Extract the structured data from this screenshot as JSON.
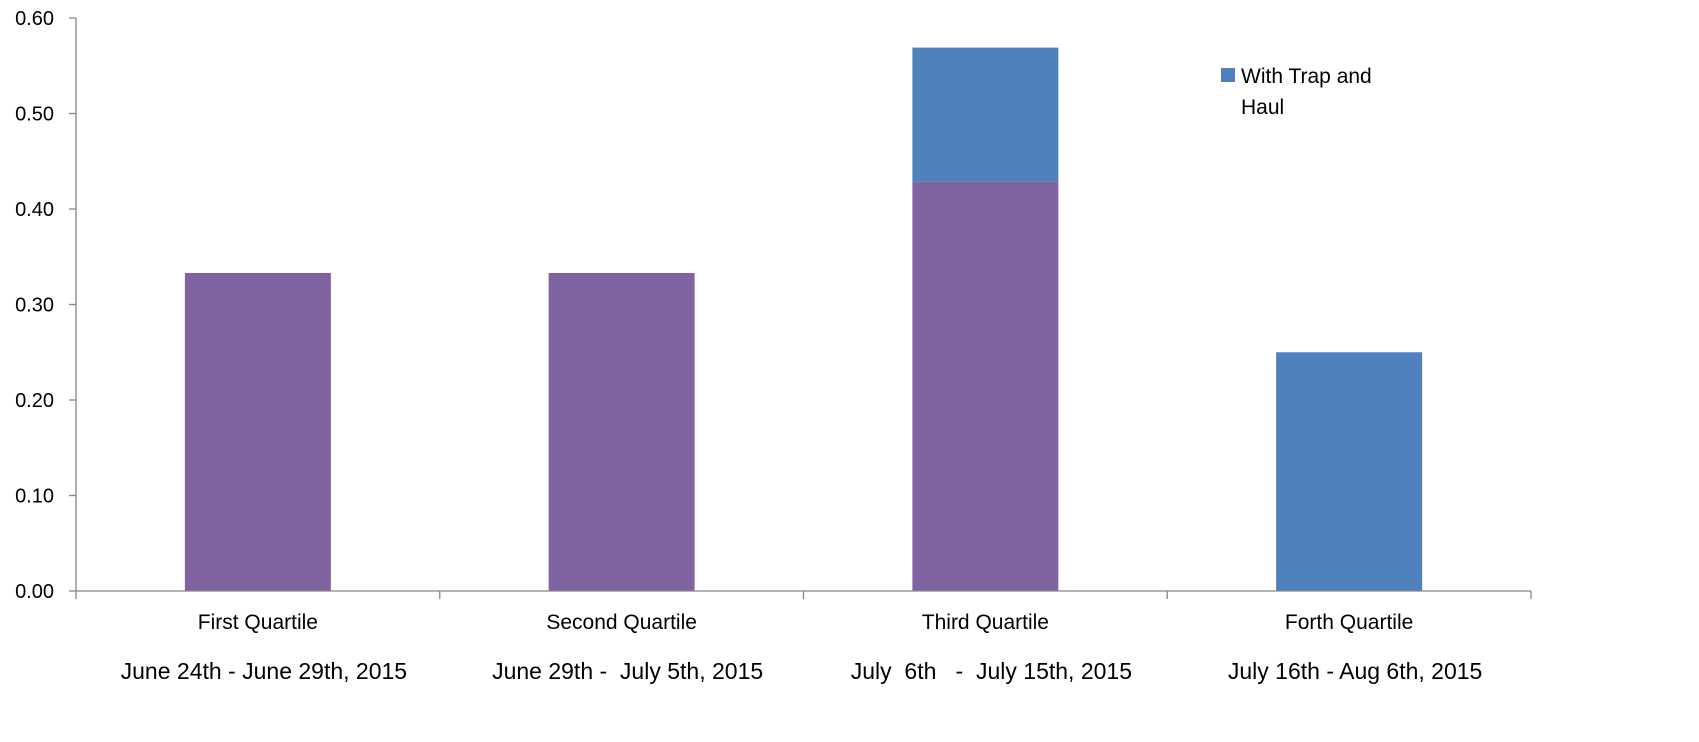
{
  "chart_data": {
    "type": "bar",
    "stacked": true,
    "categories": [
      "First Quartile",
      "Second Quartile",
      "Third Quartile",
      "Forth Quartile"
    ],
    "date_ranges": [
      "June 24th - June 29th, 2015",
      "June 29th -  July 5th, 2015",
      "July  6th   -  July 15th, 2015",
      "July 16th - Aug 6th, 2015"
    ],
    "series": [
      {
        "values": [
          0.333,
          0.333,
          0.429,
          0.0
        ],
        "color": "#8064a2"
      },
      {
        "name": "With Trap and Haul",
        "values": [
          0.0,
          0.0,
          0.14,
          0.25
        ],
        "color": "#4f81bd"
      }
    ],
    "ylim": [
      0,
      0.6
    ],
    "yticks": [
      "0.00",
      "0.10",
      "0.20",
      "0.30",
      "0.40",
      "0.50",
      "0.60"
    ],
    "grid": false,
    "legend": {
      "position": "top-right",
      "lines": [
        "With Trap and",
        "Haul"
      ]
    }
  }
}
